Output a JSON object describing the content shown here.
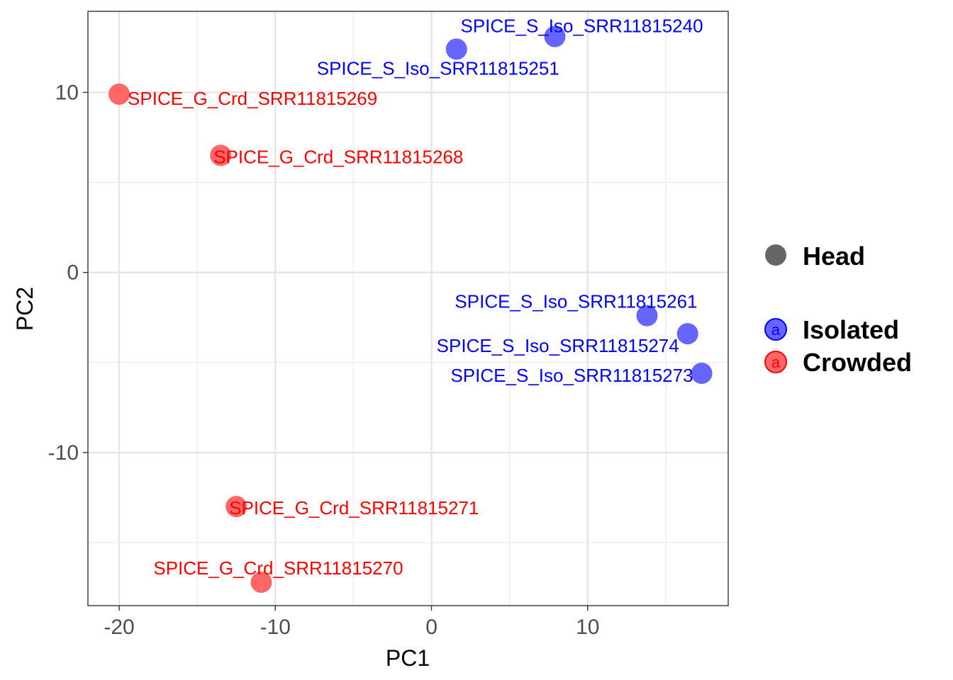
{
  "chart_data": {
    "type": "scatter",
    "title": "",
    "xlabel": "PC1",
    "ylabel": "PC2",
    "xlim": [
      -22,
      19
    ],
    "ylim": [
      -18.5,
      14.5
    ],
    "xticks": [
      -20,
      -10,
      0,
      10
    ],
    "xtick_labels": [
      "-20",
      "-10",
      "0",
      "10"
    ],
    "yticks": [
      -10,
      0,
      10
    ],
    "ytick_labels": [
      "-10",
      "0",
      "10"
    ],
    "grid": true,
    "legend_placement": "right",
    "series": [
      {
        "name": "Isolated",
        "color": "#6666ff",
        "label_color": "#0000ff",
        "points": [
          {
            "label": "SPICE_S_Iso_SRR11815240",
            "x": 7.9,
            "y": 13.1
          },
          {
            "label": "SPICE_S_Iso_SRR11815251",
            "x": 1.6,
            "y": 12.4
          },
          {
            "label": "SPICE_S_Iso_SRR11815261",
            "x": 13.8,
            "y": -2.4
          },
          {
            "label": "SPICE_S_Iso_SRR11815274",
            "x": 16.4,
            "y": -3.4
          },
          {
            "label": "SPICE_S_Iso_SRR11815273",
            "x": 17.3,
            "y": -5.6
          }
        ]
      },
      {
        "name": "Crowded",
        "color": "#ff6666",
        "label_color": "#ff0000",
        "points": [
          {
            "label": "SPICE_G_Crd_SRR11815269",
            "x": -20.0,
            "y": 9.9
          },
          {
            "label": "SPICE_G_Crd_SRR11815268",
            "x": -13.5,
            "y": 6.5
          },
          {
            "label": "SPICE_G_Crd_SRR11815271",
            "x": -12.5,
            "y": -13.0
          },
          {
            "label": "SPICE_G_Crd_SRR11815270",
            "x": -10.9,
            "y": -17.2
          }
        ]
      }
    ],
    "legend": {
      "shape_title": "Head",
      "shape_color": "#666666",
      "key_glyph": "a",
      "entries": [
        {
          "name": "Isolated",
          "fill": "#6666ff",
          "stroke": "#0000ff"
        },
        {
          "name": "Crowded",
          "fill": "#ff6666",
          "stroke": "#ff0000"
        }
      ]
    }
  }
}
